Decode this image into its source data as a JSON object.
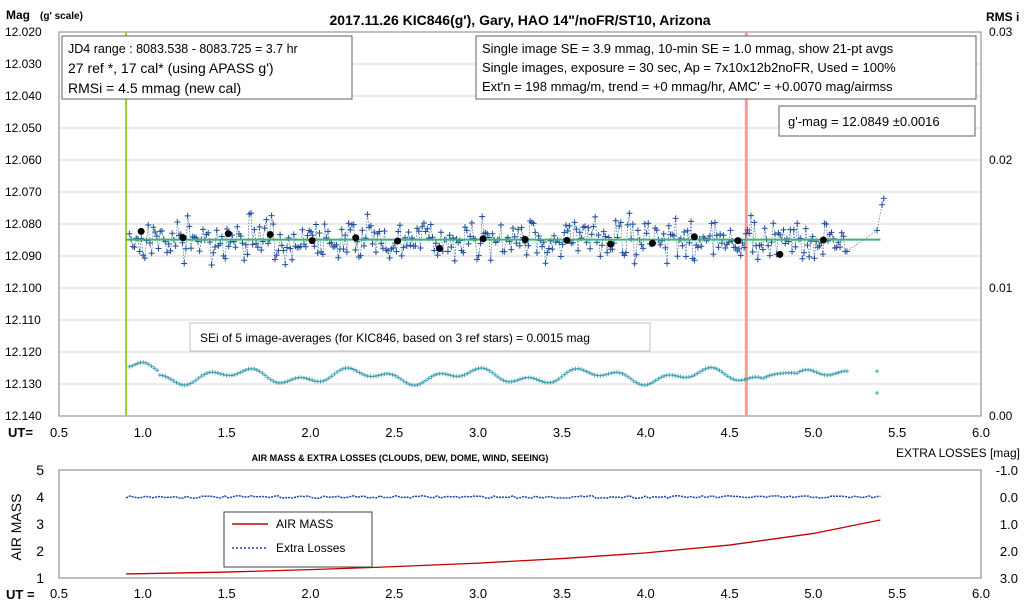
{
  "chart_data": [
    {
      "type": "scatter",
      "title": "2017.11.26  KIC846(g'),  Gary, HAO 14\"/noFR/ST10,  Arizona",
      "ylabel_main": "Mag",
      "ylabel_sub": "(g' scale)",
      "ylabel_right": "RMS i",
      "xlabel": "UT=",
      "ylim": [
        12.14,
        12.02
      ],
      "y_ticks": [
        "12.020",
        "12.030",
        "12.040",
        "12.050",
        "12.060",
        "12.070",
        "12.080",
        "12.090",
        "12.100",
        "12.110",
        "12.120",
        "12.130",
        "12.140"
      ],
      "y2lim": [
        0.0,
        0.03
      ],
      "y2_ticks": [
        "0.03",
        "0.02",
        "0.01",
        "0.00"
      ],
      "xlim": [
        0.5,
        6.0
      ],
      "x_ticks": [
        "0.5",
        "1.0",
        "1.5",
        "2.0",
        "2.5",
        "3.0",
        "3.5",
        "4.0",
        "4.5",
        "5.0",
        "5.5",
        "6.0"
      ],
      "grid": true,
      "info_left": [
        "JD4 range : 8083.538 - 8083.725 = 3.7  hr",
        "27 ref *, 17 cal* (using APASS g')",
        "RMSi = 4.5 mmag (new cal)"
      ],
      "info_right": [
        "Single image SE = 3.9 mmag, 10-min SE = 1.0 mmag, show  21-pt avgs",
        "Single images, exposure = 30 sec, Ap = 7x10x12b2noFR,  Used = 100%",
        "Ext'n = 198 mmag/m, trend =  +0 mmag/hr, AMC' = +0.0070 mag/airmss"
      ],
      "gmag_label": "g'-mag = 12.0849 ±0.0016",
      "sei_label": "SEi of 5 image-averages (for KIC846, based on 3 ref stars) = 0.0015  mag",
      "fit_line": {
        "x": [
          0.9,
          5.4
        ],
        "y": [
          12.0849,
          12.0849
        ],
        "color": "#3cb371"
      },
      "start_marker_x": 0.9,
      "start_marker_color": "#9acd32",
      "event_marker_x": 4.6,
      "event_marker_color": "#ff9999",
      "single_images": {
        "x_start": 0.92,
        "x_end": 5.2,
        "count": 420,
        "mean": 12.0849,
        "scatter": 0.004,
        "color": "#1f4e9c"
      },
      "averages": {
        "x": [
          0.99,
          1.24,
          1.51,
          1.76,
          2.01,
          2.27,
          2.52,
          2.77,
          3.03,
          3.28,
          3.53,
          3.79,
          4.04,
          4.29,
          4.55,
          4.8,
          5.06
        ],
        "y": [
          12.0823,
          12.0843,
          12.083,
          12.0833,
          12.0852,
          12.0843,
          12.0853,
          12.0876,
          12.0846,
          12.0848,
          12.0851,
          12.0863,
          12.086,
          12.084,
          12.0852,
          12.0895,
          12.085
        ],
        "color": "#000000"
      },
      "rms_series": {
        "baseline": 0.0031,
        "color": "#3c9fb0"
      },
      "tail_points": [
        {
          "x": 5.38,
          "y": 12.082
        },
        {
          "x": 5.41,
          "y": 12.074
        },
        {
          "x": 5.42,
          "y": 12.072
        }
      ]
    },
    {
      "type": "line",
      "title": "AIR MASS & EXTRA LOSSES (CLOUDS, DEW, DOME, WIND, SEEING)",
      "ylabel": "AIR MASS",
      "ylabel_right": "EXTRA LOSSES [mag]",
      "xlabel": "UT =",
      "ylim": [
        1,
        5
      ],
      "y_ticks": [
        "1",
        "2",
        "3",
        "4",
        "5"
      ],
      "y2lim": [
        3.0,
        -1.0
      ],
      "y2_ticks": [
        "-1.0",
        "0.0",
        "1.0",
        "2.0",
        "3.0"
      ],
      "xlim": [
        0.5,
        6.0
      ],
      "x_ticks": [
        "0.5",
        "1.0",
        "1.5",
        "2.0",
        "2.5",
        "3.0",
        "3.5",
        "4.0",
        "4.5",
        "5.0",
        "5.5",
        "6.0"
      ],
      "grid": false,
      "legend": {
        "placement": "center-left",
        "entries": [
          "AIR MASS",
          "Extra Losses"
        ]
      },
      "series": [
        {
          "name": "AIR MASS",
          "color": "#c00000",
          "x": [
            0.9,
            1.5,
            2.0,
            2.5,
            3.0,
            3.5,
            4.0,
            4.5,
            5.0,
            5.4
          ],
          "values": [
            1.15,
            1.22,
            1.31,
            1.42,
            1.55,
            1.72,
            1.93,
            2.22,
            2.65,
            3.15
          ]
        },
        {
          "name": "Extra Losses",
          "color": "#1f3fa8",
          "x": [
            0.9,
            5.4
          ],
          "values": [
            0.0,
            0.0
          ]
        }
      ]
    }
  ]
}
